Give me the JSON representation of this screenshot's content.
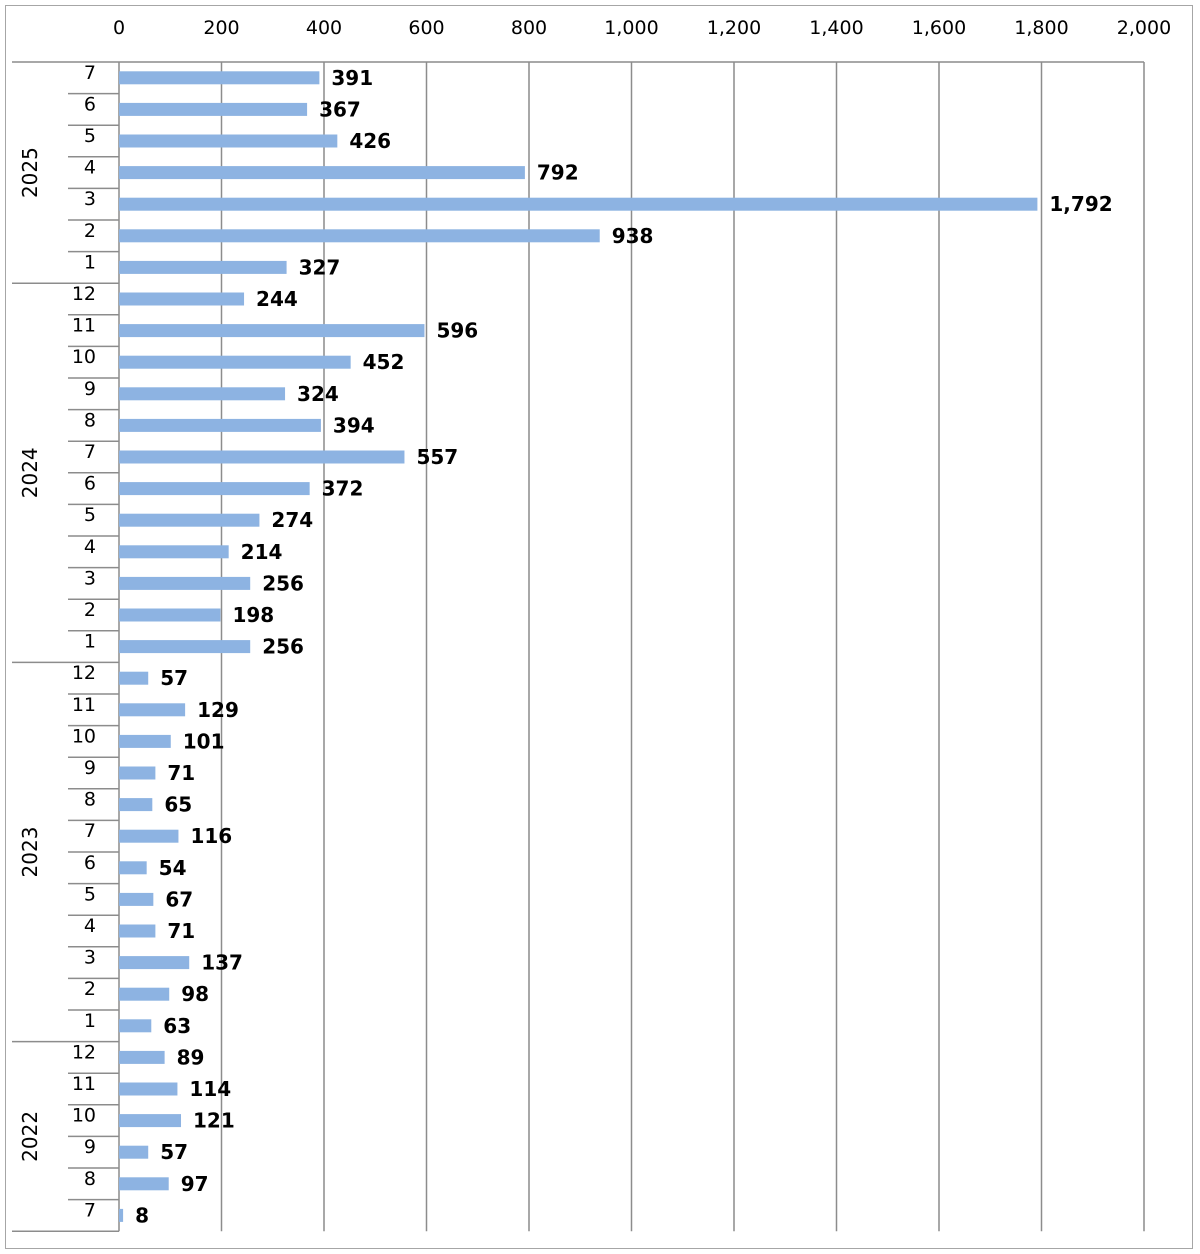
{
  "chart_data": {
    "type": "bar",
    "orientation": "horizontal",
    "title": "",
    "xlabel": "",
    "ylabel": "",
    "xlim": [
      0,
      2000
    ],
    "x_ticks": [
      "0",
      "200",
      "400",
      "600",
      "800",
      "1,000",
      "1,200",
      "1,400",
      "1,600",
      "1,800",
      "2,000"
    ],
    "axis_position": "top",
    "grid": "vertical",
    "bar_color": "#8db3e2",
    "groups": [
      {
        "year": "2025",
        "bars": [
          {
            "month": "7",
            "value": 391,
            "label": "391"
          },
          {
            "month": "6",
            "value": 367,
            "label": "367"
          },
          {
            "month": "5",
            "value": 426,
            "label": "426"
          },
          {
            "month": "4",
            "value": 792,
            "label": "792"
          },
          {
            "month": "3",
            "value": 1792,
            "label": "1,792"
          },
          {
            "month": "2",
            "value": 938,
            "label": "938"
          },
          {
            "month": "1",
            "value": 327,
            "label": "327"
          }
        ]
      },
      {
        "year": "2024",
        "bars": [
          {
            "month": "12",
            "value": 244,
            "label": "244"
          },
          {
            "month": "11",
            "value": 596,
            "label": "596"
          },
          {
            "month": "10",
            "value": 452,
            "label": "452"
          },
          {
            "month": "9",
            "value": 324,
            "label": "324"
          },
          {
            "month": "8",
            "value": 394,
            "label": "394"
          },
          {
            "month": "7",
            "value": 557,
            "label": "557"
          },
          {
            "month": "6",
            "value": 372,
            "label": "372"
          },
          {
            "month": "5",
            "value": 274,
            "label": "274"
          },
          {
            "month": "4",
            "value": 214,
            "label": "214"
          },
          {
            "month": "3",
            "value": 256,
            "label": "256"
          },
          {
            "month": "2",
            "value": 198,
            "label": "198"
          },
          {
            "month": "1",
            "value": 256,
            "label": "256"
          }
        ]
      },
      {
        "year": "2023",
        "bars": [
          {
            "month": "12",
            "value": 57,
            "label": "57"
          },
          {
            "month": "11",
            "value": 129,
            "label": "129"
          },
          {
            "month": "10",
            "value": 101,
            "label": "101"
          },
          {
            "month": "9",
            "value": 71,
            "label": "71"
          },
          {
            "month": "8",
            "value": 65,
            "label": "65"
          },
          {
            "month": "7",
            "value": 116,
            "label": "116"
          },
          {
            "month": "6",
            "value": 54,
            "label": "54"
          },
          {
            "month": "5",
            "value": 67,
            "label": "67"
          },
          {
            "month": "4",
            "value": 71,
            "label": "71"
          },
          {
            "month": "3",
            "value": 137,
            "label": "137"
          },
          {
            "month": "2",
            "value": 98,
            "label": "98"
          },
          {
            "month": "1",
            "value": 63,
            "label": "63"
          }
        ]
      },
      {
        "year": "2022",
        "bars": [
          {
            "month": "12",
            "value": 89,
            "label": "89"
          },
          {
            "month": "11",
            "value": 114,
            "label": "114"
          },
          {
            "month": "10",
            "value": 121,
            "label": "121"
          },
          {
            "month": "9",
            "value": 57,
            "label": "57"
          },
          {
            "month": "8",
            "value": 97,
            "label": "97"
          },
          {
            "month": "7",
            "value": 8,
            "label": "8"
          }
        ]
      }
    ]
  }
}
